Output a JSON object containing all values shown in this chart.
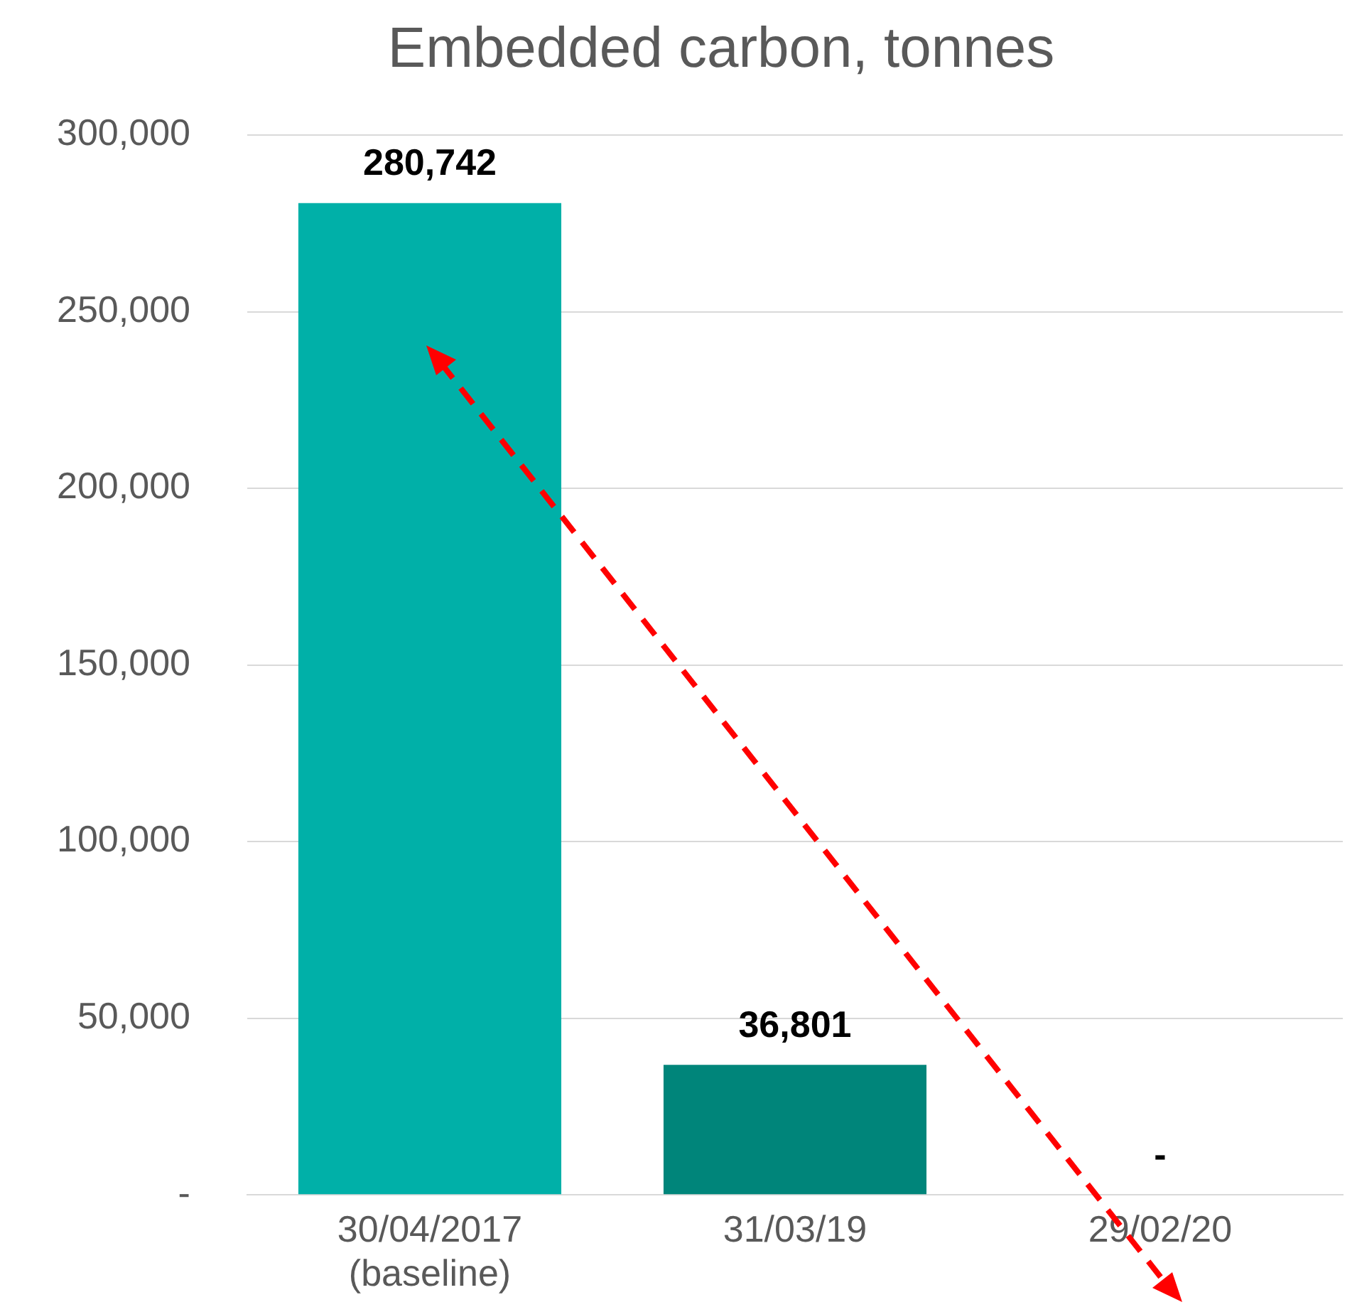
{
  "chart_data": {
    "type": "bar",
    "title": "Embedded carbon, tonnes",
    "categories": [
      "30/04/2017\n(baseline)",
      "31/03/19",
      "29/02/20"
    ],
    "values": [
      280742,
      36801,
      0
    ],
    "colors": [
      "#00b0a8",
      "#00857a",
      "#00857a"
    ],
    "value_labels": [
      "280,742",
      "36,801",
      "-"
    ],
    "ylim": [
      0,
      300000
    ],
    "yticks": [
      {
        "value": 0,
        "label": "-"
      },
      {
        "value": 50000,
        "label": "50,000"
      },
      {
        "value": 100000,
        "label": "100,000"
      },
      {
        "value": 150000,
        "label": "150,000"
      },
      {
        "value": 200000,
        "label": "200,000"
      },
      {
        "value": 250000,
        "label": "250,000"
      },
      {
        "value": 300000,
        "label": "300,000"
      }
    ],
    "grid": "y",
    "legend": false
  }
}
